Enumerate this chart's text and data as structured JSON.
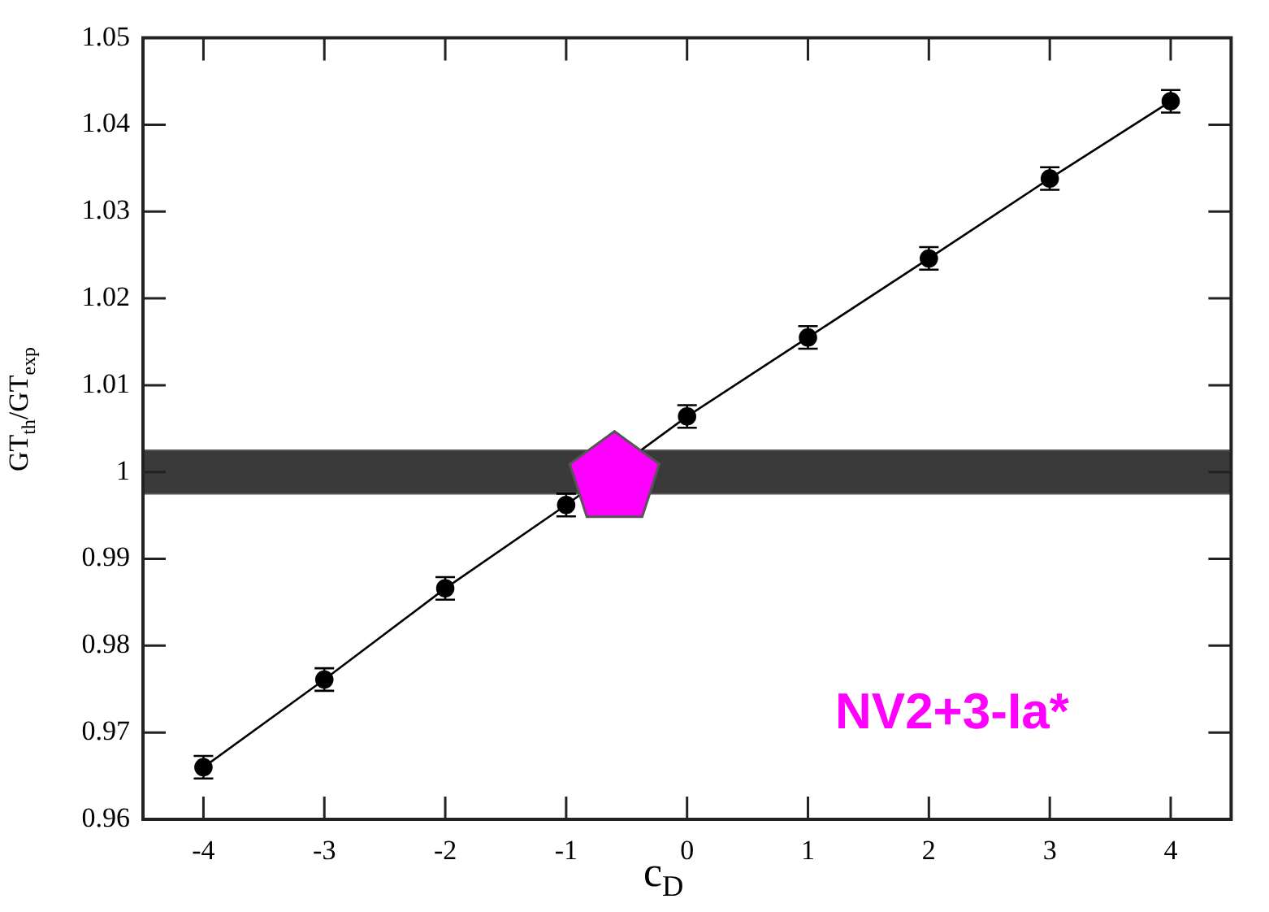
{
  "chart_data": {
    "type": "line",
    "xlabel": "c$_{D}$",
    "ylabel": "GT$_{th}$/GT$_{exp}$",
    "xlim": [
      -4.5,
      4.5
    ],
    "xticks": [
      -4,
      -3,
      -2,
      -1,
      0,
      1,
      2,
      3,
      4
    ],
    "ylim": [
      0.96,
      1.05
    ],
    "yticks": [
      0.96,
      0.97,
      0.98,
      0.99,
      1,
      1.01,
      1.02,
      1.03,
      1.04,
      1.05
    ],
    "grid": false,
    "legend": false,
    "series": [
      {
        "color": "#000000",
        "marker": "circle",
        "line_style": "solid",
        "x": [
          -4,
          -3,
          -2,
          -1,
          0,
          1,
          2,
          3,
          4
        ],
        "values": [
          0.966,
          0.9761,
          0.9866,
          0.9962,
          1.0064,
          1.0155,
          1.0246,
          1.0338,
          1.0427
        ],
        "errors": [
          0.0013,
          0.0013,
          0.0013,
          0.0013,
          0.0013,
          0.0013,
          0.0013,
          0.0013,
          0.0013
        ]
      },
      {
        "type": "scatter",
        "color": "#ff00ff",
        "x": [
          -0.6
        ],
        "values": [
          1.0
        ]
      }
    ],
    "bands": [
      {
        "axis": "y",
        "from": 0.9975,
        "to": 1.0025,
        "color": "#3a3a3a"
      }
    ],
    "annotations": [
      "NV2+3-Ia*"
    ]
  }
}
